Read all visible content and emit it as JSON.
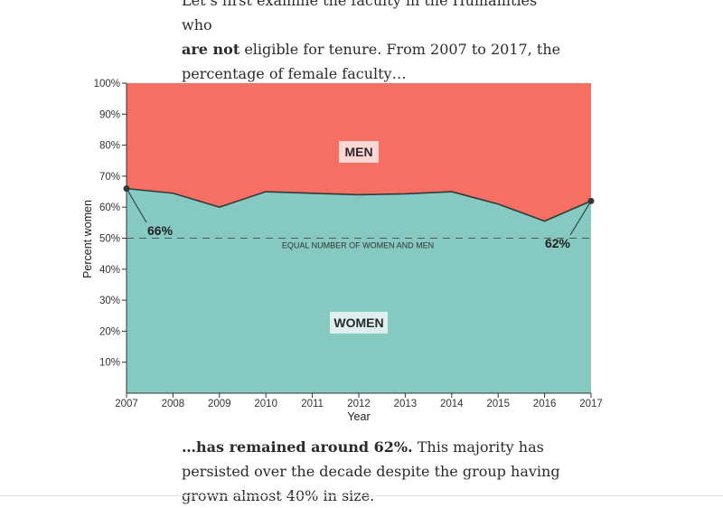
{
  "article": {
    "intro_line1": "Let’s first examine the faculty in the Humanities who",
    "intro_line2_bold": "are not",
    "intro_line2_rest": " eligible for tenure. From 2007 to 2017, the",
    "intro_line3": "percentage of female faculty…",
    "outro_line1_bold": "…has remained around 62%.",
    "outro_line1_rest": " This majority has",
    "outro_line2": "persisted over the decade despite the group having",
    "outro_line3": "grown almost 40% in size."
  },
  "chart_data": {
    "type": "area",
    "x": [
      2007,
      2008,
      2009,
      2010,
      2011,
      2012,
      2013,
      2014,
      2015,
      2016,
      2017
    ],
    "series": [
      {
        "name": "WOMEN",
        "values": [
          66,
          64.5,
          60,
          65,
          64.5,
          64,
          64.3,
          65,
          61,
          55.5,
          62
        ],
        "color": "#85c9c0"
      },
      {
        "name": "MEN",
        "values": [
          34,
          35.5,
          40,
          35,
          35.5,
          36,
          35.7,
          35,
          39,
          44.5,
          38
        ],
        "color": "#f66f63"
      }
    ],
    "xlabel": "Year",
    "ylabel": "Percent women",
    "ylim": [
      0,
      100
    ],
    "yticks": [
      10,
      20,
      30,
      40,
      50,
      60,
      70,
      80,
      90,
      100
    ],
    "ytick_labels": [
      "10%",
      "20%",
      "30%",
      "40%",
      "50%",
      "60%",
      "70%",
      "80%",
      "90%",
      "100%"
    ],
    "grid": false,
    "annotations": {
      "reference_value": 50,
      "reference_label": "EQUAL NUMBER OF WOMEN AND MEN",
      "start_label": "66%",
      "end_label": "62%",
      "upper_region_label": "MEN",
      "lower_region_label": "WOMEN"
    },
    "colors": {
      "line": "#2f3b3b",
      "reference_line": "#555555",
      "label_box": "#ffffff"
    }
  }
}
